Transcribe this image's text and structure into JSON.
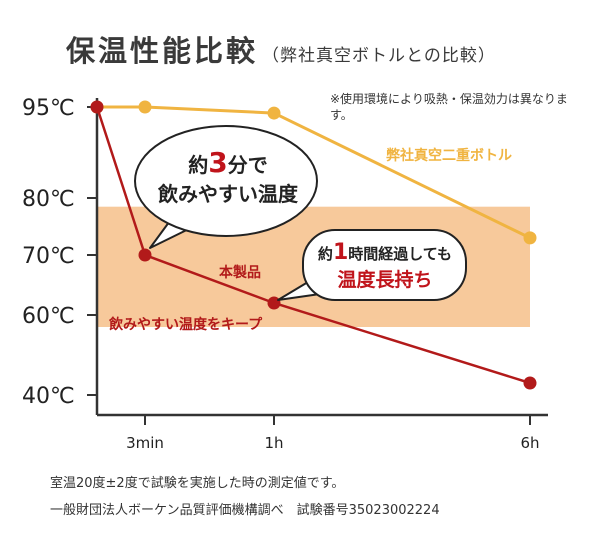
{
  "title": "保温性能比較",
  "subtitle": "（弊社真空ボトルとの比較）",
  "note": "※使用環境により吸熱・保温効力は異なります。",
  "chart_data": {
    "type": "line",
    "x_categories": [
      "",
      "3min",
      "1h",
      "6h"
    ],
    "y_ticks": [
      "95℃",
      "80℃",
      "70℃",
      "60℃",
      "40℃"
    ],
    "series": [
      {
        "name": "弊社真空二重ボトル",
        "color": "#f0b441",
        "values": [
          95,
          95,
          94,
          73
        ]
      },
      {
        "name": "本製品",
        "color": "#b21a1a",
        "values": [
          95,
          70,
          62,
          43
        ]
      }
    ],
    "band": {
      "label": "飲みやすい温度をキープ",
      "from": 57,
      "to": 79,
      "color": "#f7c99b"
    },
    "callouts": [
      {
        "parts": [
          "約",
          "3",
          "分で"
        ],
        "line2": "飲みやすい温度"
      },
      {
        "parts": [
          "約",
          "1",
          "時間経過しても"
        ],
        "line2": "温度長持ち"
      }
    ]
  },
  "footer": [
    "室温20度±2度で試験を実施した時の測定値です。",
    "一般財団法人ボーケン品質評価機構調べ　試験番号35023002224"
  ]
}
